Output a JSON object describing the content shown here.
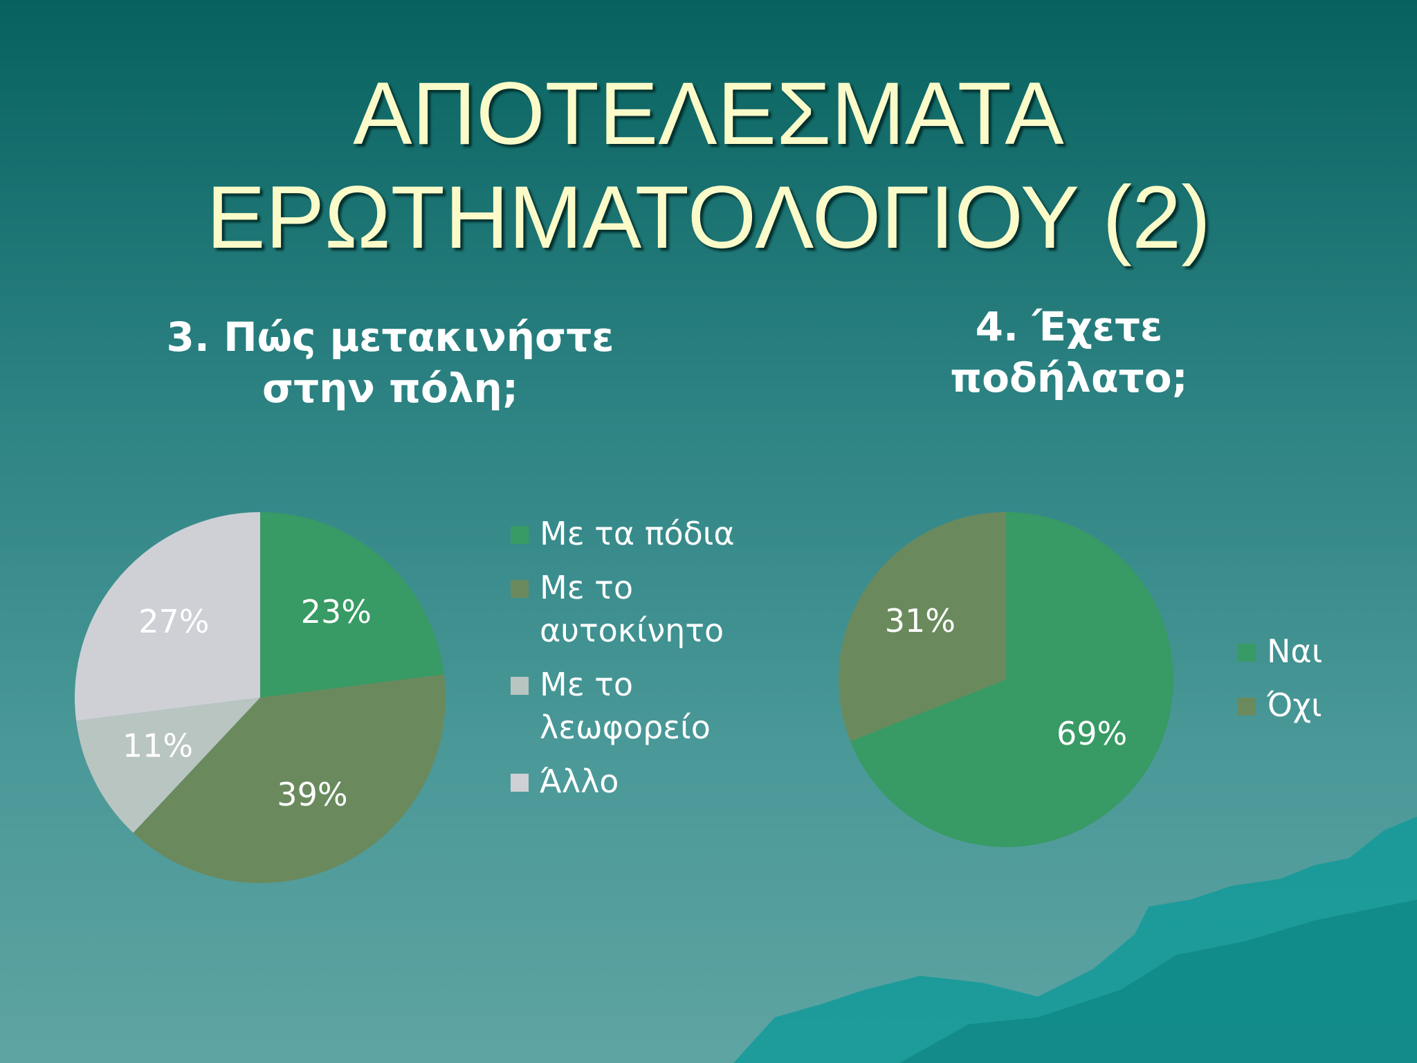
{
  "title": [
    "ΑΠΟΤΕΛΕΣΜΑΤΑ",
    "ΕΡΩΤΗΜΑΤΟΛΟΓΙΟΥ (2)"
  ],
  "chart_data": [
    {
      "type": "pie",
      "title": "3. Πώς μετακινήστε στην πόλη;",
      "categories": [
        "Με τα πόδια",
        "Με το αυτοκίνητο",
        "Με το λεωφορείο",
        "Άλλο"
      ],
      "values": [
        23,
        39,
        11,
        27
      ],
      "value_labels": [
        "23%",
        "39%",
        "11%",
        "27%"
      ],
      "colors": [
        "#389a64",
        "#6a8a5e",
        "#b9c5c1",
        "#cfd0d5"
      ]
    },
    {
      "type": "pie",
      "title": "4. Έχετε ποδήλατο;",
      "categories": [
        "Ναι",
        "Όχι"
      ],
      "values": [
        69,
        31
      ],
      "value_labels": [
        "69%",
        "31%"
      ],
      "colors": [
        "#389a64",
        "#6a8a5e"
      ]
    }
  ]
}
